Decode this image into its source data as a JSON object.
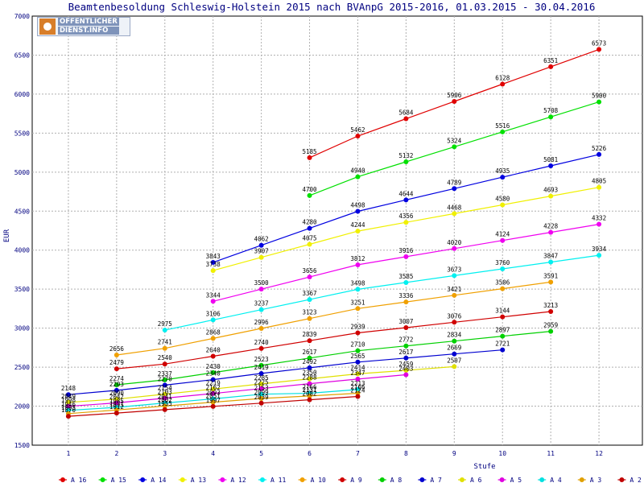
{
  "logo": {
    "line1": "OFFENTLICHER",
    "line2": "DIENST.INFO"
  },
  "chart_data": {
    "type": "line",
    "title": "Beamtenbesoldung Schleswig-Holstein 2015 nach BVAnpG 2015-2016, 01.03.2015 - 30.04.2016",
    "xlabel": "Stufe",
    "ylabel": "EUR",
    "x": [
      1,
      2,
      3,
      4,
      5,
      6,
      7,
      8,
      9,
      10,
      11,
      12
    ],
    "xlim": [
      0.25,
      12.9
    ],
    "ylim": [
      1500,
      7000
    ],
    "yticks": [
      1500,
      2000,
      2500,
      3000,
      3500,
      4000,
      4500,
      5000,
      5500,
      6000,
      6500,
      7000
    ],
    "grid": true,
    "legend_position": "bottom",
    "series": [
      {
        "name": "A_16",
        "color": "#e00000",
        "x": [
          6,
          7,
          8,
          9,
          10,
          11,
          12
        ],
        "values": [
          5185,
          5462,
          5684,
          5906,
          6128,
          6351,
          6573
        ]
      },
      {
        "name": "A_15",
        "color": "#00e000",
        "x": [
          6,
          7,
          8,
          9,
          10,
          11,
          12
        ],
        "values": [
          4700,
          4940,
          5132,
          5324,
          5516,
          5708,
          5900
        ]
      },
      {
        "name": "A_14",
        "color": "#0000e0",
        "x": [
          4,
          5,
          6,
          7,
          8,
          9,
          10,
          11,
          12
        ],
        "values": [
          3843,
          4062,
          4280,
          4498,
          4644,
          4789,
          4935,
          5081,
          5226
        ]
      },
      {
        "name": "A_13",
        "color": "#f0f000",
        "x": [
          4,
          5,
          6,
          7,
          8,
          9,
          10,
          11,
          12
        ],
        "values": [
          3738,
          3907,
          4075,
          4244,
          4356,
          4468,
          4580,
          4693,
          4805
        ]
      },
      {
        "name": "A_12",
        "color": "#f000f0",
        "x": [
          4,
          5,
          6,
          7,
          8,
          9,
          10,
          11,
          12
        ],
        "values": [
          3344,
          3500,
          3656,
          3812,
          3916,
          4020,
          4124,
          4228,
          4332
        ]
      },
      {
        "name": "A_11",
        "color": "#00f0f0",
        "x": [
          3,
          4,
          5,
          6,
          7,
          8,
          9,
          10,
          11,
          12
        ],
        "values": [
          2975,
          3106,
          3237,
          3367,
          3498,
          3585,
          3673,
          3760,
          3847,
          3934
        ]
      },
      {
        "name": "A_10",
        "color": "#f0a000",
        "x": [
          2,
          3,
          4,
          5,
          6,
          7,
          8,
          9,
          10,
          11
        ],
        "values": [
          2656,
          2741,
          2868,
          2996,
          3123,
          3251,
          3336,
          3421,
          3506,
          3591
        ]
      },
      {
        "name": "A_9",
        "color": "#d00000",
        "x": [
          2,
          3,
          4,
          5,
          6,
          7,
          8,
          9,
          10,
          11
        ],
        "values": [
          2479,
          2540,
          2640,
          2740,
          2839,
          2939,
          3007,
          3076,
          3144,
          3213
        ]
      },
      {
        "name": "A_8",
        "color": "#00d000",
        "x": [
          2,
          3,
          4,
          5,
          6,
          7,
          8,
          9,
          10,
          11
        ],
        "values": [
          2274,
          2337,
          2430,
          2523,
          2617,
          2710,
          2772,
          2834,
          2897,
          2959
        ]
      },
      {
        "name": "A_7",
        "color": "#0000d0",
        "x": [
          1,
          2,
          3,
          4,
          5,
          6,
          7,
          8,
          9,
          10
        ],
        "values": [
          2148,
          2203,
          2270,
          2340,
          2419,
          2492,
          2565,
          2617,
          2669,
          2721
        ]
      },
      {
        "name": "A_6",
        "color": "#e0e000",
        "x": [
          1,
          2,
          3,
          4,
          5,
          6,
          7,
          8,
          9
        ],
        "values": [
          2049,
          2090,
          2154,
          2219,
          2285,
          2350,
          2414,
          2459,
          2507
        ]
      },
      {
        "name": "A_5",
        "color": "#e000e0",
        "x": [
          1,
          2,
          3,
          4,
          5,
          6,
          7,
          8
        ],
        "values": [
          1998,
          2042,
          2103,
          2162,
          2225,
          2288,
          2347,
          2403
        ]
      },
      {
        "name": "A_4",
        "color": "#00e0e0",
        "x": [
          1,
          2,
          3,
          4,
          5,
          6,
          7
        ],
        "values": [
          1946,
          1985,
          2041,
          2093,
          2153,
          2166,
          2213
        ]
      },
      {
        "name": "A_3",
        "color": "#e0a000",
        "x": [
          1,
          2,
          3,
          4,
          5,
          6,
          7
        ],
        "values": [
          1905,
          1951,
          2002,
          2051,
          2099,
          2131,
          2166
        ]
      },
      {
        "name": "A_2",
        "color": "#c00000",
        "x": [
          1,
          2,
          3,
          4,
          5,
          6,
          7
        ],
        "values": [
          1870,
          1912,
          1955,
          1997,
          2039,
          2082,
          2124
        ]
      }
    ]
  }
}
